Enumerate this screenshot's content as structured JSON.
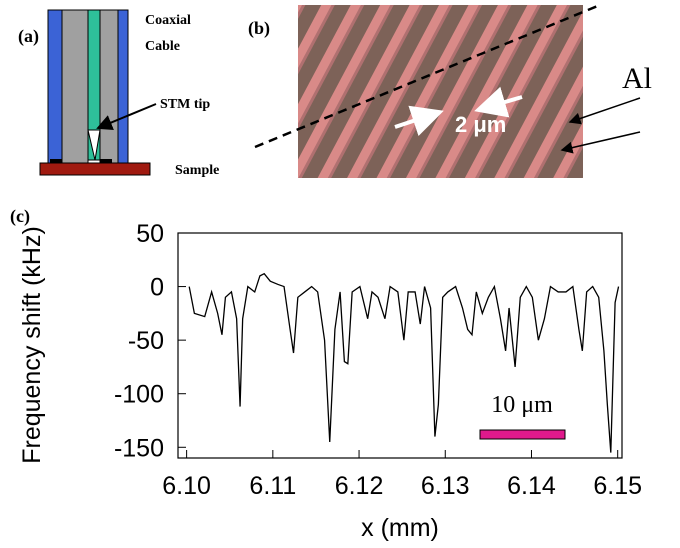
{
  "panel_a": {
    "label": "(a)",
    "cable_label_1": "Coaxial",
    "cable_label_2": "Cable",
    "tip_label": "STM tip",
    "sample_label": "Sample"
  },
  "panel_b": {
    "label": "(b)",
    "spacing_label": "2 μm",
    "material_label": "Al"
  },
  "chart_data": {
    "type": "line",
    "panel_label": "(c)",
    "y_label": "Frequency shift (kHz)",
    "x_label": "x (mm)",
    "annotation": "10 μm",
    "x": [
      6.1003,
      6.1009,
      6.1021,
      6.1029,
      6.1036,
      6.1041,
      6.1045,
      6.1052,
      6.1058,
      6.1062,
      6.1065,
      6.1071,
      6.1079,
      6.1085,
      6.109,
      6.1097,
      6.1106,
      6.1113,
      6.112,
      6.1124,
      6.1129,
      6.1137,
      6.1145,
      6.1152,
      6.116,
      6.1166,
      6.1172,
      6.1178,
      6.1183,
      6.1187,
      6.1192,
      6.1201,
      6.121,
      6.1215,
      6.1222,
      6.123,
      6.1236,
      6.1245,
      6.1252,
      6.1257,
      6.1265,
      6.1271,
      6.1276,
      6.1283,
      6.1288,
      6.1292,
      6.1297,
      6.1303,
      6.1312,
      6.132,
      6.1326,
      6.1331,
      6.1336,
      6.1343,
      6.135,
      6.1357,
      6.1364,
      6.137,
      6.1374,
      6.1381,
      6.1387,
      6.1394,
      6.1401,
      6.1408,
      6.1415,
      6.1422,
      6.1431,
      6.144,
      6.1448,
      6.1455,
      6.1459,
      6.1464,
      6.1471,
      6.1478,
      6.1484,
      6.1488,
      6.1492,
      6.1497,
      6.1501
    ],
    "series": [
      {
        "color": "#000000",
        "values": [
          0,
          -25,
          -28,
          -5,
          -25,
          -45,
          -10,
          -5,
          -30,
          -112,
          -30,
          0,
          -5,
          10,
          12,
          5,
          2,
          0,
          -40,
          -62,
          -10,
          -5,
          0,
          -5,
          -50,
          -145,
          -40,
          -5,
          -70,
          -72,
          -5,
          0,
          -30,
          -5,
          -10,
          -30,
          0,
          -5,
          -50,
          -5,
          -5,
          -35,
          0,
          -20,
          -140,
          -110,
          -10,
          -5,
          0,
          -20,
          -40,
          -45,
          -5,
          -25,
          -10,
          0,
          -30,
          -60,
          -20,
          -75,
          -10,
          0,
          -10,
          -50,
          -30,
          0,
          -5,
          -5,
          0,
          -40,
          -60,
          -5,
          0,
          -10,
          -60,
          -110,
          -155,
          -15,
          0
        ]
      }
    ],
    "xlim": [
      6.099,
      6.1505
    ],
    "ylim": [
      -160,
      50
    ],
    "xticks": [
      {
        "value": 6.1,
        "label": "6.10"
      },
      6.11,
      6.12,
      6.13,
      6.14,
      6.15
    ],
    "yticks": [
      50,
      0,
      -50,
      -100,
      -150
    ]
  }
}
